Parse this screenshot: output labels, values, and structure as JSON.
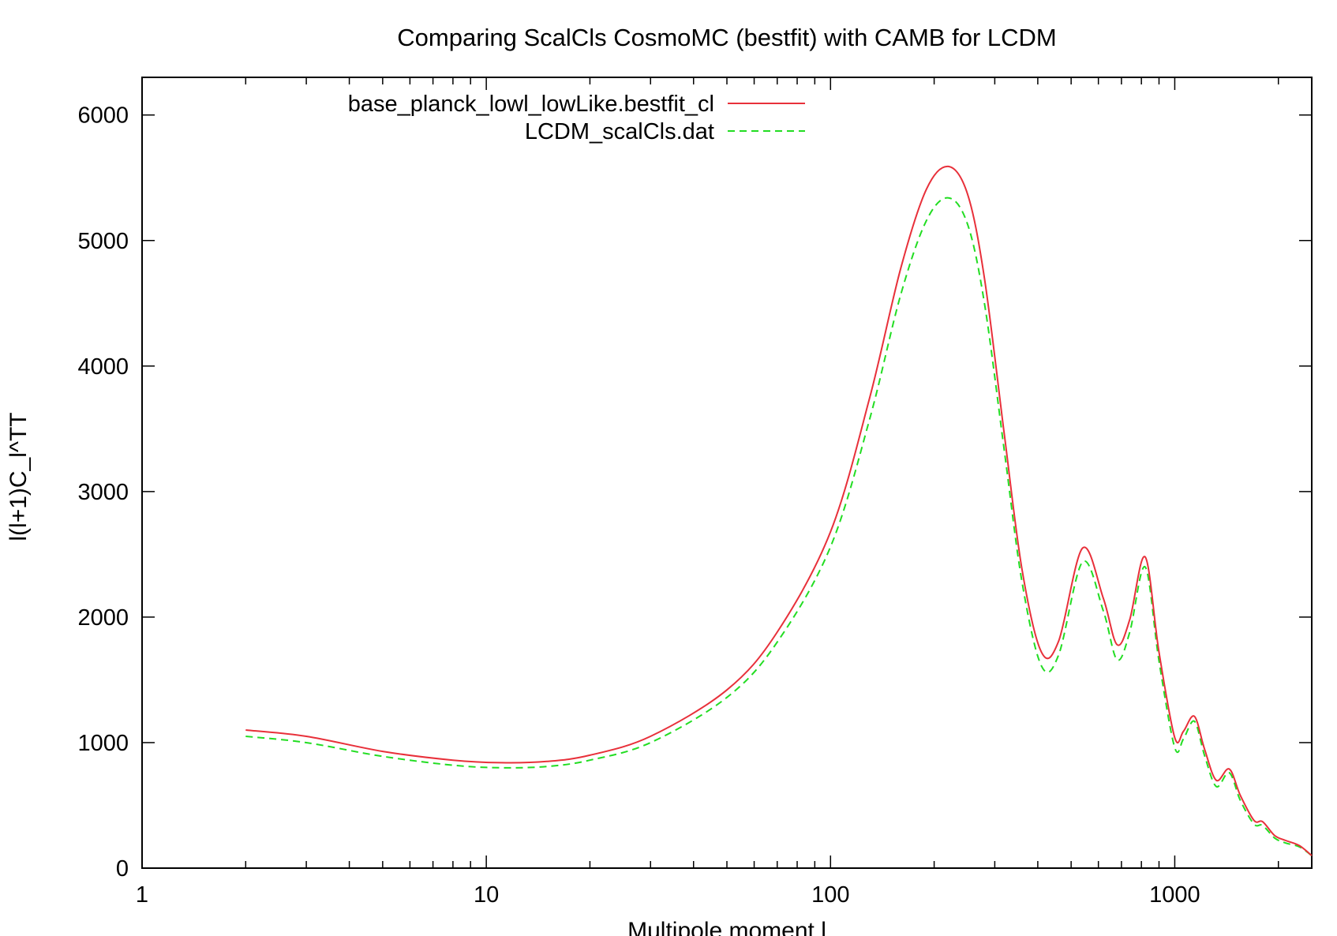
{
  "chart_data": {
    "type": "line",
    "title": "Comparing ScalCls CosmoMC (bestfit) with CAMB for LCDM",
    "xlabel": "Multipole moment l",
    "ylabel": "l(l+1)C_l^TT",
    "x_scale": "log",
    "xlim": [
      1,
      2500
    ],
    "ylim": [
      0,
      6300
    ],
    "x_ticks": [
      1,
      10,
      100,
      1000
    ],
    "x_tick_labels": [
      "1",
      "10",
      "100",
      "1000"
    ],
    "y_ticks": [
      0,
      1000,
      2000,
      3000,
      4000,
      5000,
      6000
    ],
    "y_tick_labels": [
      "0",
      "1000",
      "2000",
      "3000",
      "4000",
      "5000",
      "6000"
    ],
    "grid": false,
    "legend_position": "top-left",
    "series": [
      {
        "name": "base_planck_lowl_lowLike.bestfit_cl",
        "color": "#e8303a",
        "style": "solid",
        "x": [
          2,
          3,
          5,
          8,
          11,
          15,
          20,
          30,
          50,
          70,
          100,
          130,
          160,
          190,
          220,
          250,
          280,
          320,
          360,
          410,
          460,
          540,
          620,
          680,
          740,
          820,
          900,
          1000,
          1060,
          1140,
          1220,
          1320,
          1440,
          1550,
          1700,
          1800,
          1950,
          2100,
          2300,
          2500
        ],
        "values": [
          1100,
          1050,
          930,
          860,
          840,
          850,
          900,
          1050,
          1420,
          1880,
          2680,
          3750,
          4780,
          5410,
          5590,
          5370,
          4700,
          3450,
          2380,
          1720,
          1810,
          2550,
          2150,
          1780,
          1980,
          2480,
          1720,
          1040,
          1090,
          1210,
          950,
          700,
          790,
          580,
          380,
          370,
          260,
          220,
          180,
          100
        ]
      },
      {
        "name": "LCDM_scalCls.dat",
        "color": "#22dd22",
        "style": "dashed",
        "x": [
          2,
          3,
          5,
          8,
          11,
          15,
          20,
          30,
          50,
          70,
          100,
          130,
          160,
          190,
          220,
          250,
          280,
          320,
          360,
          410,
          460,
          540,
          620,
          680,
          740,
          820,
          900,
          1000,
          1060,
          1140,
          1220,
          1320,
          1440,
          1550,
          1700,
          1800,
          1950,
          2100,
          2300,
          2500
        ],
        "values": [
          1050,
          1000,
          890,
          820,
          800,
          810,
          860,
          1000,
          1360,
          1800,
          2560,
          3580,
          4570,
          5160,
          5340,
          5130,
          4500,
          3320,
          2280,
          1610,
          1700,
          2440,
          2050,
          1660,
          1880,
          2400,
          1650,
          960,
          1030,
          1170,
          900,
          650,
          760,
          540,
          350,
          340,
          240,
          200,
          170,
          100
        ]
      }
    ]
  }
}
